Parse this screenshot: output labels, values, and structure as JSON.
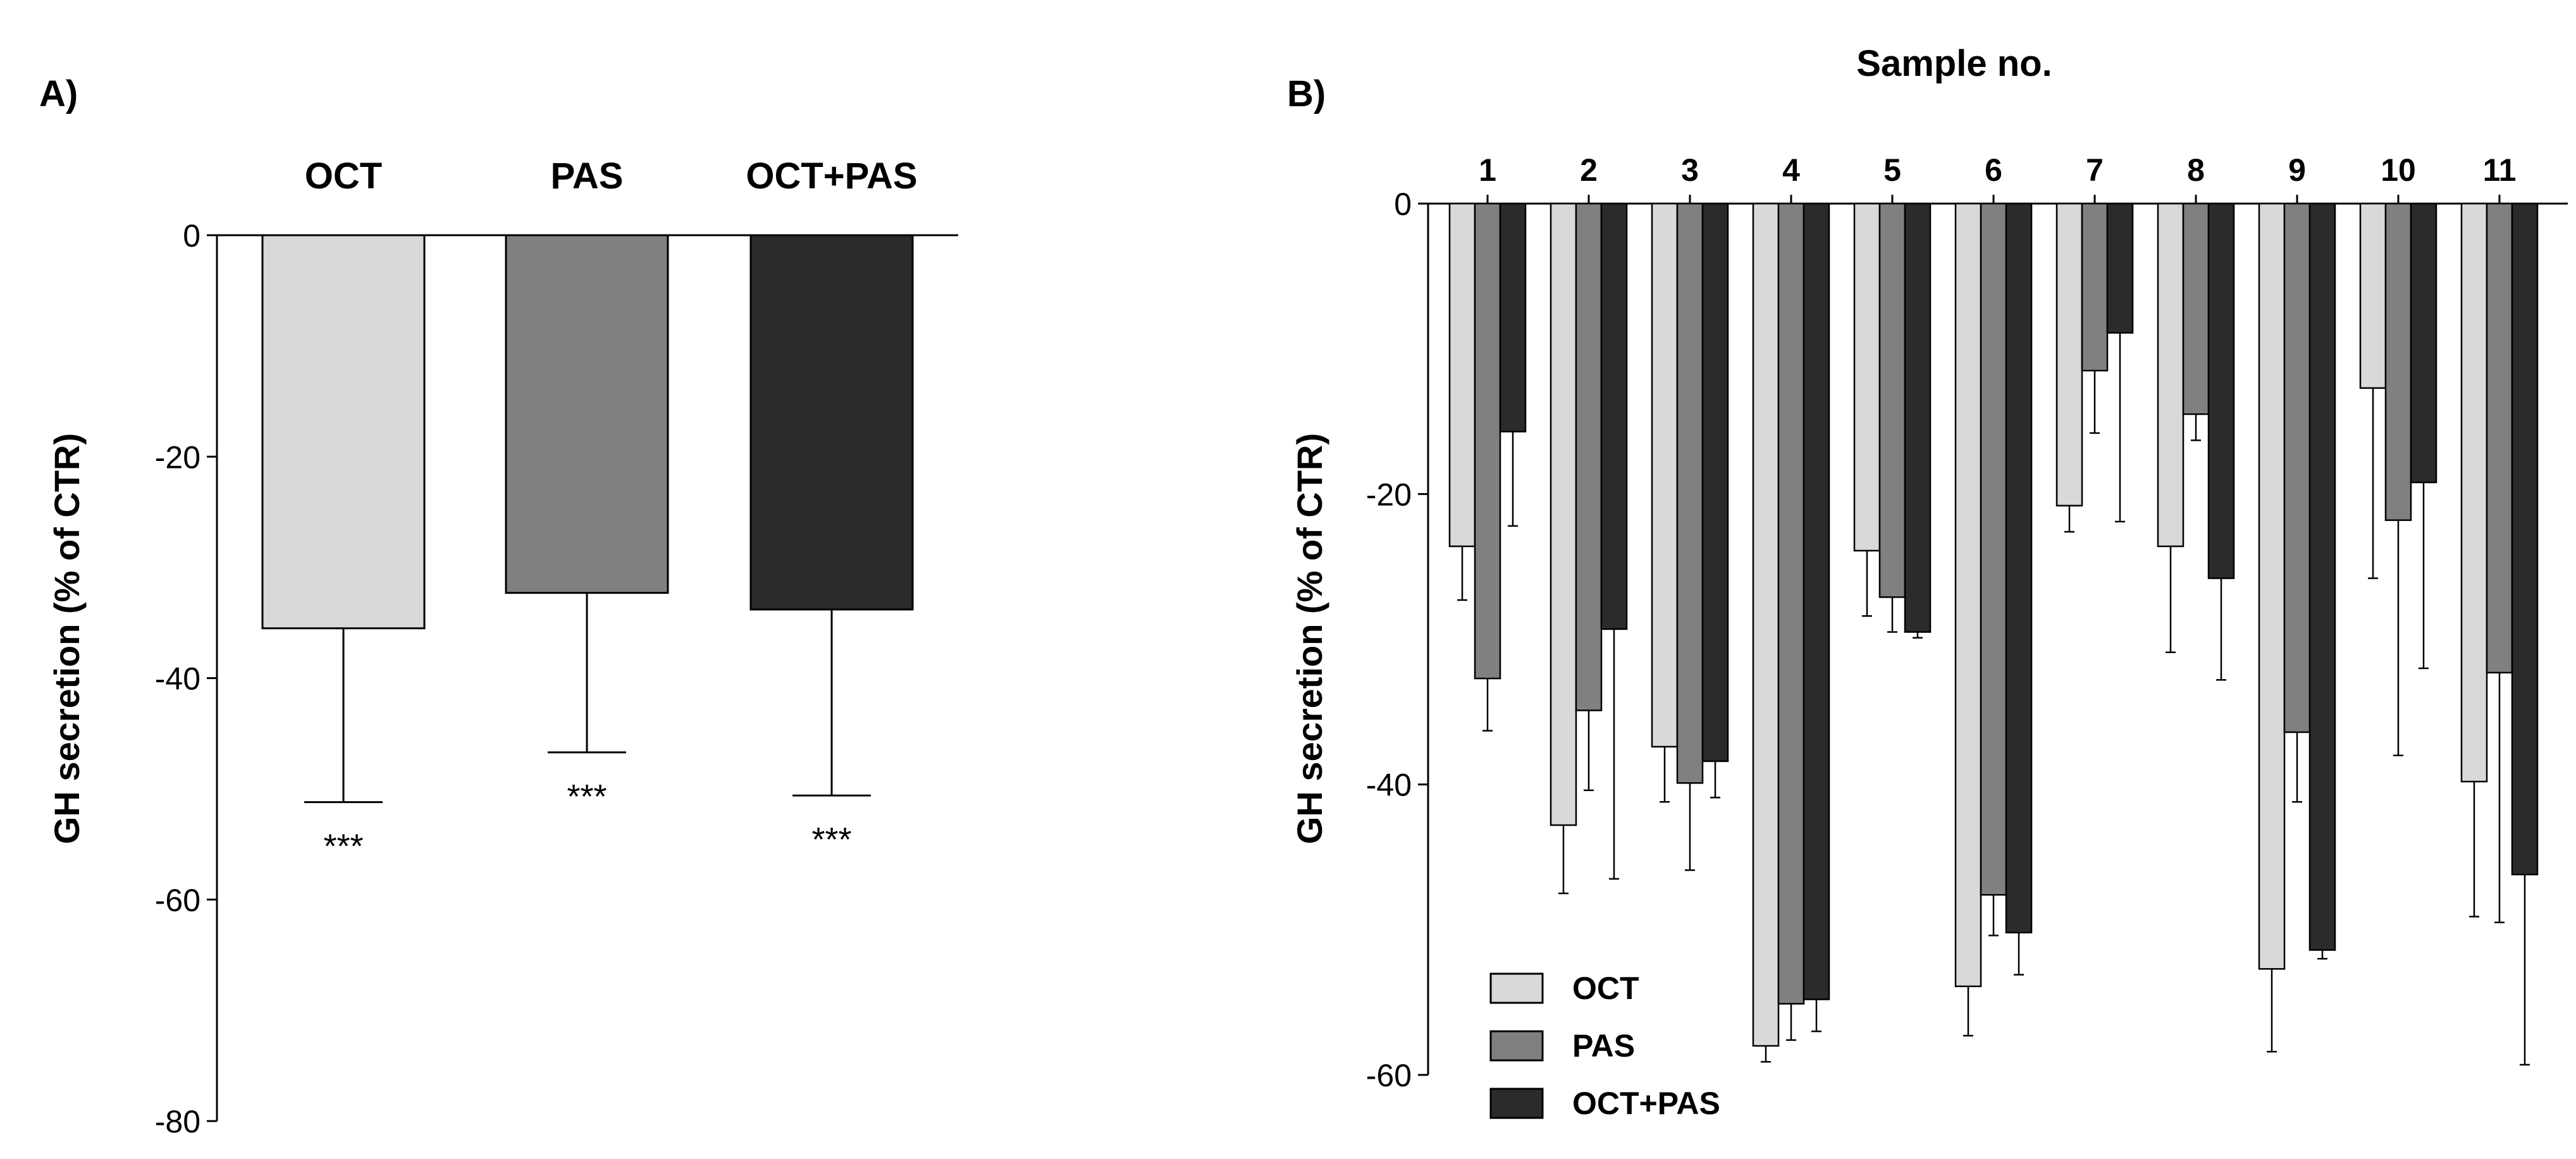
{
  "colors": {
    "OCT": "#d9d9d9",
    "PAS": "#808080",
    "OCT+PAS": "#2b2b2b",
    "axis": "#000000"
  },
  "chart_data": [
    {
      "type": "bar",
      "panel": "A)",
      "title": "",
      "xlabel": "",
      "ylabel": "GH secretion (% of CTR)",
      "ylim": [
        -80,
        0
      ],
      "yticks": [
        0,
        -20,
        -40,
        -60,
        -80
      ],
      "categories": [
        "OCT",
        "PAS",
        "OCT+PAS"
      ],
      "values": [
        -35.5,
        -32.3,
        -33.8
      ],
      "errors": [
        15.7,
        14.4,
        16.8
      ],
      "annotations": [
        "***",
        "***",
        "***"
      ]
    },
    {
      "type": "bar",
      "panel": "B)",
      "title": "Sample no.",
      "xlabel": "Sample no.",
      "ylabel": "GH secretion (% of CTR)",
      "ylim": [
        -60,
        0
      ],
      "yticks": [
        0,
        -20,
        -40,
        -60
      ],
      "categories": [
        "1",
        "2",
        "3",
        "4",
        "5",
        "6",
        "7",
        "8",
        "9",
        "10",
        "11"
      ],
      "series": [
        {
          "name": "OCT",
          "values": [
            -23.6,
            -42.8,
            -37.4,
            -58.0,
            -23.9,
            -53.9,
            -20.8,
            -23.6,
            -52.7,
            -12.7,
            -39.8
          ],
          "errors": [
            3.7,
            4.7,
            3.8,
            1.1,
            4.5,
            3.4,
            1.8,
            7.3,
            5.7,
            13.1,
            9.3
          ]
        },
        {
          "name": "PAS",
          "values": [
            -32.7,
            -34.9,
            -39.9,
            -55.1,
            -27.1,
            -47.6,
            -11.5,
            -14.5,
            -36.4,
            -21.8,
            -32.3
          ],
          "errors": [
            3.6,
            5.5,
            6.0,
            2.5,
            2.4,
            2.8,
            4.3,
            1.8,
            4.8,
            16.2,
            17.2
          ]
        },
        {
          "name": "OCT+PAS",
          "values": [
            -15.7,
            -29.3,
            -38.4,
            -54.8,
            -29.5,
            -50.2,
            -8.9,
            -25.8,
            -51.4,
            -19.2,
            -46.2
          ],
          "errors": [
            6.5,
            17.2,
            2.5,
            2.2,
            0.4,
            2.9,
            13.0,
            7.0,
            0.6,
            12.8,
            13.1
          ]
        }
      ],
      "legend": {
        "position": "bottom-left",
        "entries": [
          "OCT",
          "PAS",
          "OCT+PAS"
        ]
      }
    }
  ]
}
